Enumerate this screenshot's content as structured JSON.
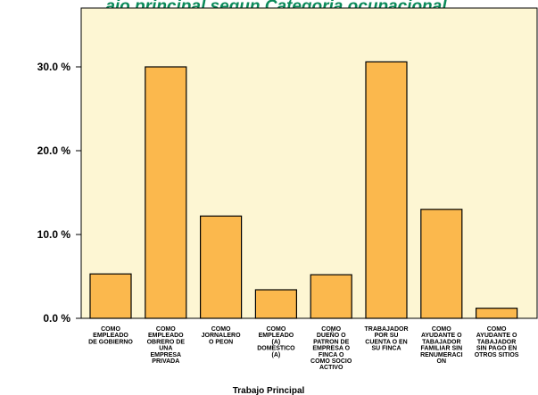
{
  "chart_data": {
    "type": "bar",
    "title": "...ajo principal segun Categoria ocupacional",
    "xlabel": "Trabajo Principal",
    "ylabel": "",
    "ylim": [
      0,
      36
    ],
    "yticks": [
      0,
      10,
      20,
      30
    ],
    "ytick_labels": [
      "0.0 %",
      "10.0 %",
      "20.0 %",
      "30.0 %"
    ],
    "grid": false,
    "categories": [
      "COMO EMPLEADO DE GOBIERNO",
      "COMO EMPLEADO OBRERO DE UNA EMPRESA PRIVADA",
      "COMO JORNALERO O PEON",
      "COMO EMPLEADO (A) DOMESTICO (A)",
      "COMO DUEÑO O PATRON DE EMPRESA O FINCA O COMO SOCIO ACTIVO",
      "TRABAJADOR POR SU CUENTA O EN SU FINCA",
      "COMO AYUDANTE O TABAJADOR FAMILIAR SIN RENUMERACION",
      "COMO AYUDANTE O TABAJADOR SIN PAGO EN OTROS SITIOS"
    ],
    "category_lines": [
      [
        "COMO",
        "EMPLEADO",
        "DE GOBIERNO"
      ],
      [
        "COMO",
        "EMPLEADO",
        "OBRERO DE",
        "UNA",
        "EMPRESA",
        "PRIVADA"
      ],
      [
        "COMO",
        "JORNALERO",
        "O PEON"
      ],
      [
        "COMO",
        "EMPLEADO",
        "(A)",
        "DOMESTICO",
        "(A)"
      ],
      [
        "COMO",
        "DUEÑO O",
        "PATRON DE",
        "EMPRESA O",
        "FINCA O",
        "COMO SOCIO",
        "ACTIVO"
      ],
      [
        "TRABAJADOR",
        "POR SU",
        "CUENTA O EN",
        "SU FINCA"
      ],
      [
        "COMO",
        "AYUDANTE O",
        "TABAJADOR",
        "FAMILIAR SIN",
        "RENUMERACI",
        "ON"
      ],
      [
        "COMO",
        "AYUDANTE O",
        "TABAJADOR",
        "SIN PAGO EN",
        "OTROS SITIOS"
      ]
    ],
    "values": [
      5.3,
      30.0,
      12.2,
      3.4,
      5.2,
      30.6,
      13.0,
      1.2
    ],
    "colors": {
      "plot_background": "#fdf6d3",
      "bar_fill": "#fbb84d",
      "bar_stroke": "#000000",
      "title": "#0b8a5a"
    }
  }
}
